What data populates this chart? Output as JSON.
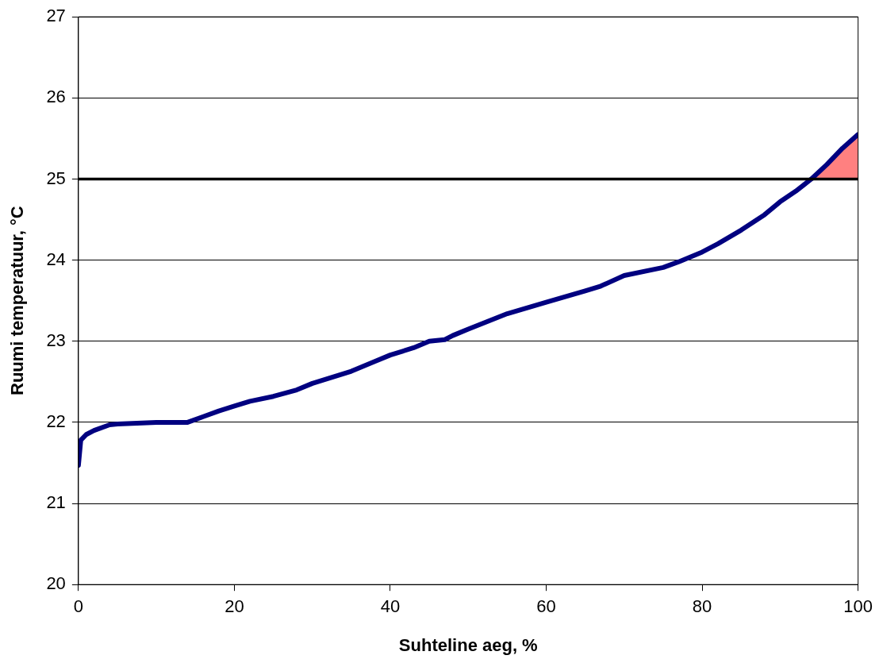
{
  "chart_data": {
    "type": "line",
    "xlabel": "Suhteline aeg, %",
    "ylabel": "Ruumi temperatuur, °C",
    "xlim": [
      0,
      100
    ],
    "xticks": [
      0,
      20,
      40,
      60,
      80,
      100
    ],
    "ylim": [
      20,
      27
    ],
    "yticks": [
      20,
      21,
      22,
      23,
      24,
      25,
      26,
      27
    ],
    "grid": "y",
    "legend": false,
    "marker": "none",
    "line_style": "solid",
    "ref_lines": [
      {
        "axis": "y",
        "value": 25,
        "color": "#000000",
        "line_style": "solid"
      }
    ],
    "series": [
      {
        "type": "area",
        "color": "#ff8080",
        "x": [
          94,
          96,
          98,
          100
        ],
        "values": [
          25.0,
          25.18,
          25.38,
          25.55
        ]
      },
      {
        "color": "#000080",
        "x": [
          0,
          0.3,
          1,
          2,
          4,
          5,
          10,
          14,
          16,
          18,
          20,
          22,
          25,
          28,
          30,
          35,
          38,
          40,
          43,
          45,
          47,
          48,
          50,
          55,
          60,
          65,
          67,
          70,
          75,
          77,
          80,
          82,
          85,
          88,
          90,
          92,
          94,
          96,
          98,
          100
        ],
        "values": [
          21.47,
          21.78,
          21.85,
          21.9,
          21.97,
          21.98,
          22.0,
          22.0,
          22.07,
          22.14,
          22.2,
          22.26,
          22.32,
          22.4,
          22.48,
          22.63,
          22.75,
          22.83,
          22.92,
          23.0,
          23.02,
          23.07,
          23.15,
          23.34,
          23.48,
          23.62,
          23.68,
          23.81,
          23.91,
          23.98,
          24.1,
          24.2,
          24.37,
          24.56,
          24.72,
          24.85,
          25.0,
          25.18,
          25.38,
          25.55
        ]
      }
    ]
  }
}
